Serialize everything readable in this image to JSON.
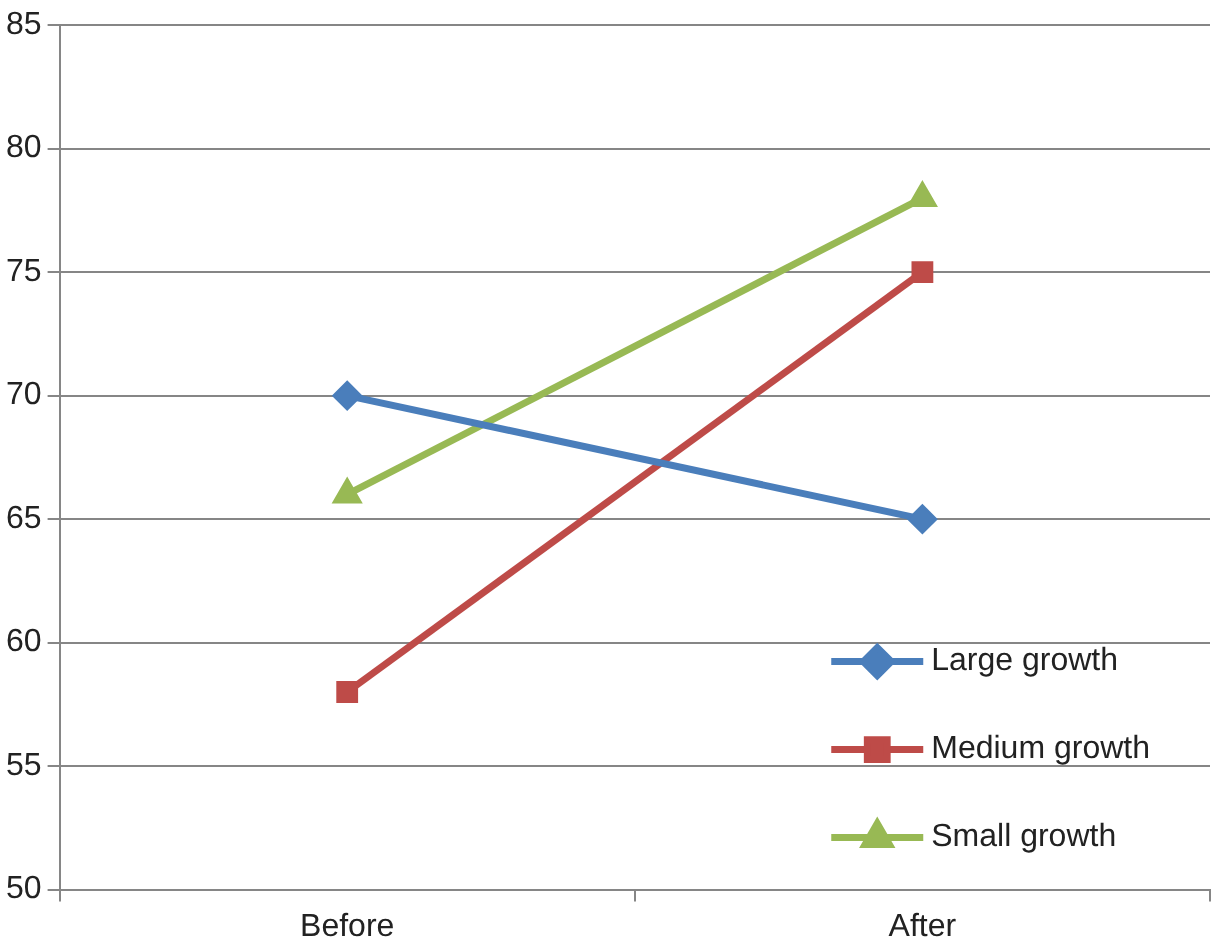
{
  "chart_data": {
    "type": "line",
    "categories": [
      "Before",
      "After"
    ],
    "series": [
      {
        "name": "Large growth",
        "color": "#4a7ebb",
        "marker": "diamond",
        "values": [
          70,
          65
        ]
      },
      {
        "name": "Medium growth",
        "color": "#be4b48",
        "marker": "square",
        "values": [
          58,
          75
        ]
      },
      {
        "name": "Small growth",
        "color": "#98b954",
        "marker": "triangle",
        "values": [
          66,
          78
        ]
      }
    ],
    "ylim": [
      50,
      85
    ],
    "yticks": [
      50,
      55,
      60,
      65,
      70,
      75,
      80,
      85
    ],
    "grid": "y",
    "legend": "bottom right",
    "line_style": "solid"
  }
}
